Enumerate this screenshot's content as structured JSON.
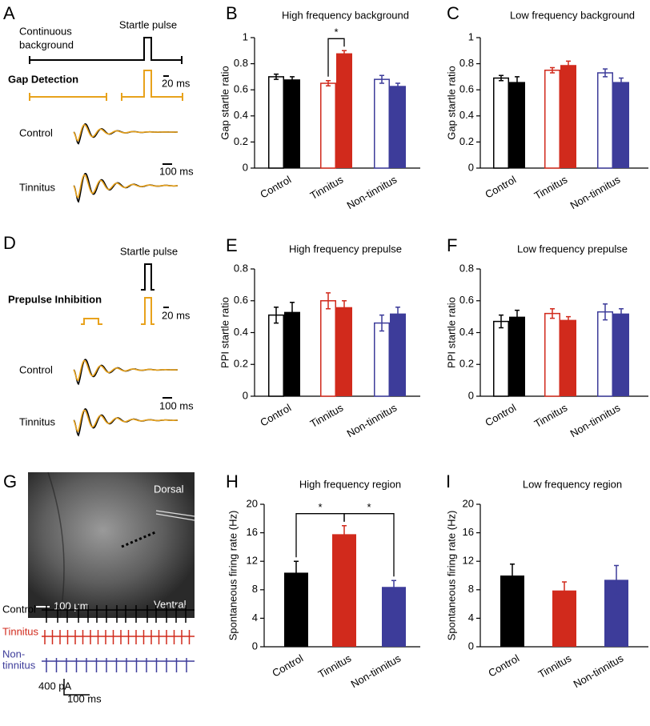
{
  "diagrams": {
    "A": {
      "panel": "A",
      "background_label": [
        "Continuous",
        "background"
      ],
      "startle": "Startle pulse",
      "gap": "Gap Detection",
      "scale_short": "20 ms",
      "control": "Control",
      "tinnitus": "Tinnitus",
      "scale_long": "100 ms"
    },
    "D": {
      "panel": "D",
      "startle": "Startle pulse",
      "prepulse": "Prepulse Inhibition",
      "scale_short": "20 ms",
      "control": "Control",
      "tinnitus": "Tinnitus",
      "scale_long": "100 ms"
    },
    "G": {
      "panel": "G",
      "dorsal": "Dorsal",
      "ventral": "Ventral",
      "scale_image": "100 μm",
      "control": "Control",
      "tinnitus": "Tinnitus",
      "non_tinnitus": [
        "Non-",
        "tinnitus"
      ],
      "scale_current": "400 pA",
      "scale_time": "100 ms"
    }
  },
  "chart_data": [
    {
      "panel": "B",
      "type": "bar",
      "title": "High frequency background",
      "ylabel": "Gap startle ratio",
      "categories": [
        "Control",
        "Tinnitus",
        "Non-tinnitus"
      ],
      "colors": [
        "#000000",
        "#d12a1c",
        "#3d3c9a"
      ],
      "series": [
        {
          "style": "open",
          "values": [
            0.7,
            0.65,
            0.68
          ],
          "errors": [
            0.02,
            0.02,
            0.03
          ]
        },
        {
          "style": "filled",
          "values": [
            0.68,
            0.88,
            0.63
          ],
          "errors": [
            0.02,
            0.02,
            0.02
          ]
        }
      ],
      "ylim": [
        0,
        1
      ],
      "yticks": [
        0,
        0.2,
        0.4,
        0.6,
        0.8,
        1
      ],
      "annotations": [
        "*"
      ]
    },
    {
      "panel": "C",
      "type": "bar",
      "title": "Low frequency background",
      "ylabel": "Gap startle ratio",
      "categories": [
        "Control",
        "Tinnitus",
        "Non-tinnitus"
      ],
      "colors": [
        "#000000",
        "#d12a1c",
        "#3d3c9a"
      ],
      "series": [
        {
          "style": "open",
          "values": [
            0.69,
            0.75,
            0.73
          ],
          "errors": [
            0.02,
            0.02,
            0.03
          ]
        },
        {
          "style": "filled",
          "values": [
            0.66,
            0.79,
            0.66
          ],
          "errors": [
            0.04,
            0.03,
            0.03
          ]
        }
      ],
      "ylim": [
        0,
        1
      ],
      "yticks": [
        0,
        0.2,
        0.4,
        0.6,
        0.8,
        1
      ]
    },
    {
      "panel": "E",
      "type": "bar",
      "title": "High frequency prepulse",
      "ylabel": "PPI startle ratio",
      "categories": [
        "Control",
        "Tinnitus",
        "Non-tinnitus"
      ],
      "colors": [
        "#000000",
        "#d12a1c",
        "#3d3c9a"
      ],
      "series": [
        {
          "style": "open",
          "values": [
            0.51,
            0.6,
            0.46
          ],
          "errors": [
            0.05,
            0.05,
            0.05
          ]
        },
        {
          "style": "filled",
          "values": [
            0.53,
            0.56,
            0.52
          ],
          "errors": [
            0.06,
            0.04,
            0.04
          ]
        }
      ],
      "ylim": [
        0,
        0.8
      ],
      "yticks": [
        0,
        0.2,
        0.4,
        0.6,
        0.8
      ]
    },
    {
      "panel": "F",
      "type": "bar",
      "title": "Low frequency prepulse",
      "ylabel": "PPI startle ratio",
      "categories": [
        "Control",
        "Tinnitus",
        "Non-tinnitus"
      ],
      "colors": [
        "#000000",
        "#d12a1c",
        "#3d3c9a"
      ],
      "series": [
        {
          "style": "open",
          "values": [
            0.47,
            0.52,
            0.53
          ],
          "errors": [
            0.04,
            0.03,
            0.05
          ]
        },
        {
          "style": "filled",
          "values": [
            0.5,
            0.48,
            0.52
          ],
          "errors": [
            0.04,
            0.02,
            0.03
          ]
        }
      ],
      "ylim": [
        0,
        0.8
      ],
      "yticks": [
        0,
        0.2,
        0.4,
        0.6,
        0.8
      ]
    },
    {
      "panel": "H",
      "type": "bar",
      "title": "High frequency region",
      "ylabel": "Spontaneous firing rate (Hz)",
      "categories": [
        "Control",
        "Tinnitus",
        "Non-tinnitus"
      ],
      "colors": [
        "#000000",
        "#d12a1c",
        "#3d3c9a"
      ],
      "series": [
        {
          "style": "filled",
          "values": [
            10.4,
            15.8,
            8.4
          ],
          "errors": [
            1.6,
            1.2,
            0.9
          ]
        }
      ],
      "ylim": [
        0,
        20
      ],
      "yticks": [
        0,
        4,
        8,
        12,
        16,
        20
      ],
      "annotations": [
        "*",
        "*"
      ]
    },
    {
      "panel": "I",
      "type": "bar",
      "title": "Low frequency region",
      "ylabel": "Spontaneous firing rate (Hz)",
      "categories": [
        "Control",
        "Tinnitus",
        "Non-tinnitus"
      ],
      "colors": [
        "#000000",
        "#d12a1c",
        "#3d3c9a"
      ],
      "series": [
        {
          "style": "filled",
          "values": [
            10.0,
            7.9,
            9.4
          ],
          "errors": [
            1.6,
            1.2,
            2.0
          ]
        }
      ],
      "ylim": [
        0,
        20
      ],
      "yticks": [
        0,
        4,
        8,
        12,
        16,
        20
      ]
    }
  ]
}
